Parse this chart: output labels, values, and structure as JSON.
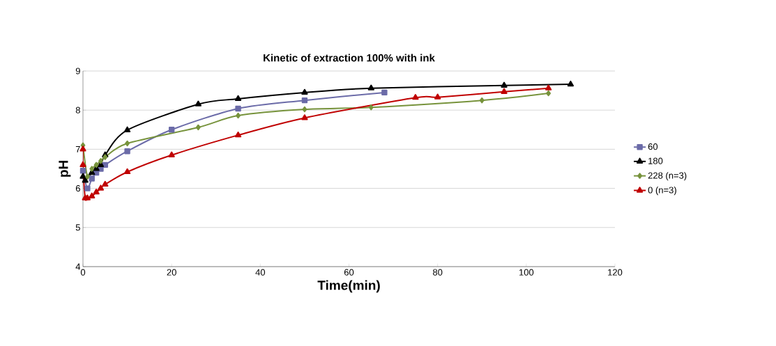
{
  "chart_data": {
    "type": "line",
    "title": "Kinetic of extraction 100% with ink",
    "xlabel": "Time(min)",
    "ylabel": "pH",
    "xlim": [
      0,
      120
    ],
    "xticks": [
      0,
      20,
      40,
      60,
      80,
      100,
      120
    ],
    "ylim": [
      4,
      9
    ],
    "yticks": [
      4,
      5,
      6,
      7,
      8,
      9
    ],
    "grid": "y",
    "legend": "right",
    "line_style": "solid",
    "series": [
      {
        "name": "60",
        "color": "#6b6ba8",
        "marker": "square",
        "x": [
          0,
          1,
          2,
          3,
          4,
          5,
          10,
          20,
          35,
          50,
          68
        ],
        "values": [
          6.45,
          6.0,
          6.25,
          6.4,
          6.5,
          6.6,
          6.95,
          7.5,
          8.04,
          8.25,
          8.45
        ]
      },
      {
        "name": "180",
        "color": "#000000",
        "marker": "triangle",
        "x": [
          0,
          0.5,
          2,
          3,
          4,
          5,
          10,
          26,
          35,
          50,
          65,
          95,
          110
        ],
        "values": [
          6.3,
          6.2,
          6.4,
          6.5,
          6.6,
          6.85,
          7.49,
          8.15,
          8.29,
          8.45,
          8.56,
          8.63,
          8.66
        ]
      },
      {
        "name": "228 (n=3)",
        "color": "#77933c",
        "marker": "diamond",
        "x": [
          0,
          1,
          2,
          3,
          4,
          5,
          10,
          26,
          35,
          50,
          65,
          90,
          105
        ],
        "values": [
          7.1,
          6.3,
          6.5,
          6.6,
          6.7,
          6.8,
          7.15,
          7.56,
          7.86,
          8.02,
          8.07,
          8.25,
          8.43
        ]
      },
      {
        "name": "0 (n=3)",
        "color": "#c00000",
        "marker": "triangle",
        "x": [
          0,
          0,
          0.5,
          1,
          2,
          3,
          4,
          5,
          10,
          20,
          35,
          50,
          75,
          80,
          95,
          105
        ],
        "values": [
          7.0,
          6.6,
          5.75,
          5.75,
          5.8,
          5.9,
          6.0,
          6.1,
          6.42,
          6.85,
          7.36,
          7.8,
          8.32,
          8.33,
          8.47,
          8.56
        ]
      }
    ]
  }
}
